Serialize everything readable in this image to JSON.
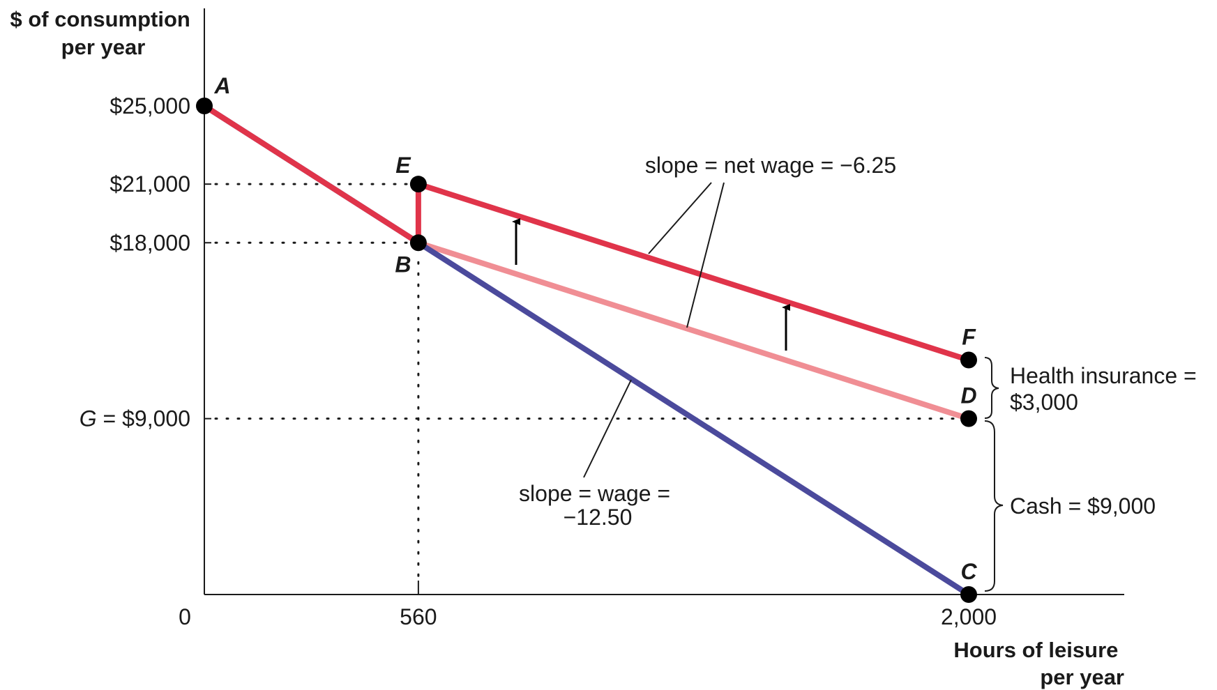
{
  "chart_data": {
    "type": "line",
    "ylabel_lines": [
      "$ of consumption",
      "per year"
    ],
    "xlabel_lines": [
      "Hours of leisure",
      "per year"
    ],
    "xlim": [
      0,
      2150
    ],
    "ylim": [
      0,
      28500
    ],
    "x_ticks": [
      {
        "value": 0,
        "label": "0"
      },
      {
        "value": 560,
        "label": "560"
      },
      {
        "value": 2000,
        "label": "2,000"
      }
    ],
    "y_ticks": [
      {
        "value": 25000,
        "prefix": "",
        "label": "$25,000"
      },
      {
        "value": 21000,
        "prefix": "",
        "label": "$21,000"
      },
      {
        "value": 18000,
        "prefix": "",
        "label": "$18,000"
      },
      {
        "value": 9000,
        "prefix": "G",
        "label": " = $9,000"
      }
    ],
    "colors": {
      "wage_line": "#4b4a9c",
      "benefit_line": "#e0344a",
      "cash_only_line": "#f08e94",
      "points": "#000000",
      "guides": "#1a1a1a"
    },
    "series": [
      {
        "points": [
          [
            0,
            25000
          ],
          [
            2000,
            0
          ]
        ]
      },
      {
        "points": [
          [
            0,
            25000
          ],
          [
            560,
            18000
          ],
          [
            560,
            21000
          ],
          [
            2000,
            12000
          ]
        ]
      },
      {
        "points": [
          [
            560,
            18000
          ],
          [
            2000,
            9000
          ]
        ]
      }
    ],
    "points": [
      {
        "label": "A",
        "x": 0,
        "y": 25000
      },
      {
        "label": "E",
        "x": 560,
        "y": 21000
      },
      {
        "label": "B",
        "x": 560,
        "y": 18000
      },
      {
        "label": "F",
        "x": 2000,
        "y": 12000
      },
      {
        "label": "D",
        "x": 2000,
        "y": 9000
      },
      {
        "label": "C",
        "x": 2000,
        "y": 0
      }
    ],
    "annotations": {
      "net_wage_slope": "slope = net wage = −6.25",
      "wage_slope_lines": [
        "slope = wage =",
        "−12.50"
      ],
      "health_insurance_lines": [
        "Health insurance =",
        "$3,000"
      ],
      "cash": "Cash = $9,000"
    }
  }
}
